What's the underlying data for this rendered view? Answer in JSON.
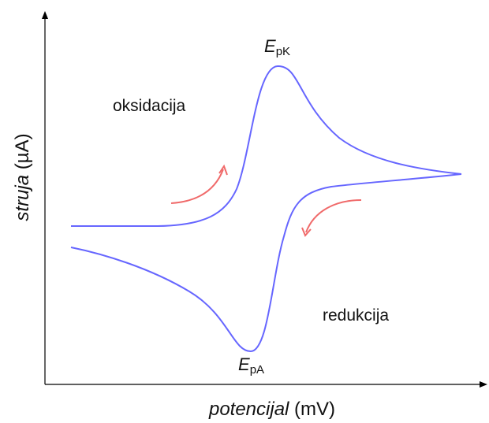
{
  "colors": {
    "curve": "#6666ff",
    "arrow": "#f06a6a",
    "axis": "#000000",
    "text": "#111111"
  },
  "axes": {
    "y_label_italic": "struja",
    "y_label_unit": " (µA)",
    "x_label_italic": "potencijal",
    "x_label_unit": " (mV)"
  },
  "regions": {
    "upper": "oksidacija",
    "lower": "redukcija"
  },
  "peaks": {
    "cathodic": {
      "main": "E",
      "sub": "pK"
    },
    "anodic": {
      "main": "E",
      "sub": "pA"
    }
  },
  "arrows": {
    "forward": "arrow-up-right-icon",
    "reverse": "arrow-down-left-icon"
  }
}
